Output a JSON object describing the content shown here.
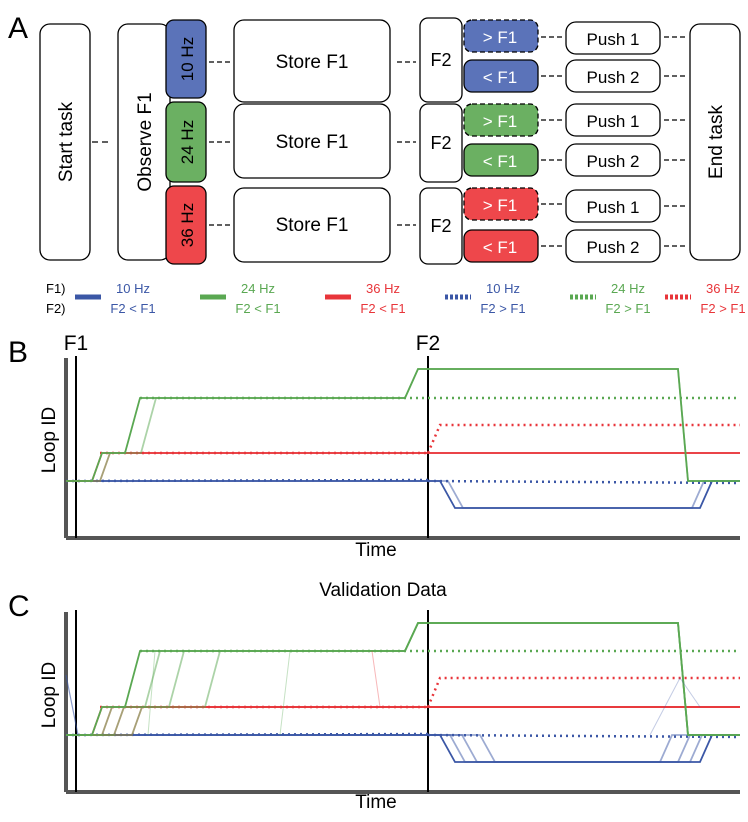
{
  "colors": {
    "blue": "#3b57a6",
    "blue_fill": "#5b73b9",
    "green": "#5aa852",
    "green_fill": "#6bb062",
    "red": "#e8353a",
    "red_fill": "#ee474b",
    "axis": "#555555",
    "line": "#000000"
  },
  "panel_a": {
    "label": "A",
    "start": "Start task",
    "observe": "Observe F1",
    "end": "End task",
    "rows": [
      {
        "freq": "10 Hz",
        "store": "Store F1",
        "f2": "F2",
        "gt": "> F1",
        "lt": "< F1",
        "push1": "Push 1",
        "push2": "Push 2",
        "color": "blue"
      },
      {
        "freq": "24 Hz",
        "store": "Store F1",
        "f2": "F2",
        "gt": "> F1",
        "lt": "< F1",
        "push1": "Push 1",
        "push2": "Push 2",
        "color": "green"
      },
      {
        "freq": "36 Hz",
        "store": "Store F1",
        "f2": "F2",
        "gt": "> F1",
        "lt": "< F1",
        "push1": "Push 1",
        "push2": "Push 2",
        "color": "red"
      }
    ]
  },
  "legend": {
    "row1_label": "F1)",
    "row2_label": "F2)",
    "items": [
      {
        "f1": "10 Hz",
        "f2": "F2 < F1",
        "color": "blue",
        "style": "solid"
      },
      {
        "f1": "24 Hz",
        "f2": "F2 < F1",
        "color": "green",
        "style": "solid"
      },
      {
        "f1": "36 Hz",
        "f2": "F2 < F1",
        "color": "red",
        "style": "solid"
      },
      {
        "f1": "10 Hz",
        "f2": "F2 > F1",
        "color": "blue",
        "style": "dotted"
      },
      {
        "f1": "24 Hz",
        "f2": "F2 > F1",
        "color": "green",
        "style": "dotted"
      },
      {
        "f1": "36 Hz",
        "f2": "F2 > F1",
        "color": "red",
        "style": "dotted"
      }
    ]
  },
  "panel_b": {
    "label": "B",
    "title": "",
    "f1_marker": "F1",
    "f2_marker": "F2",
    "xlabel": "Time",
    "ylabel": "Loop ID"
  },
  "panel_c": {
    "label": "C",
    "title": "Validation Data",
    "xlabel": "Time",
    "ylabel": "Loop ID"
  }
}
